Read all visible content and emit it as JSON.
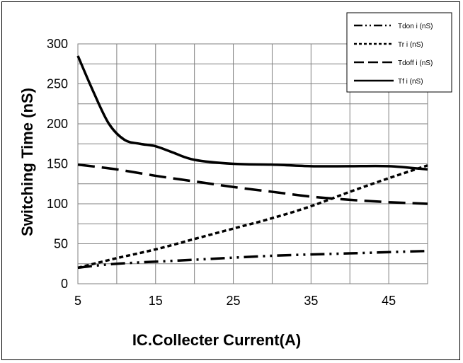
{
  "chart_data": {
    "type": "line",
    "xlabel": "IC.Collecter Current(A)",
    "ylabel": "Switching Time (nS)",
    "xlim": [
      5,
      50
    ],
    "ylim": [
      0,
      300
    ],
    "x_ticks": [
      5,
      15,
      25,
      35,
      45
    ],
    "x_tick_labels": [
      "5",
      "15",
      "25",
      "35",
      "45"
    ],
    "y_ticks": [
      0,
      50,
      100,
      150,
      200,
      250,
      300
    ],
    "y_tick_labels": [
      "0",
      "50",
      "100",
      "150",
      "200",
      "250",
      "300"
    ],
    "grid": true,
    "legend_position": "top-right",
    "series": [
      {
        "name": "Tdon i (nS)",
        "style": "dash-dot-dot",
        "color": "#000000",
        "points": [
          [
            5,
            20
          ],
          [
            10,
            25
          ],
          [
            20,
            30
          ],
          [
            30,
            35
          ],
          [
            40,
            38
          ],
          [
            50,
            41
          ]
        ]
      },
      {
        "name": "Tr i (nS)",
        "style": "short-dash",
        "color": "#000000",
        "points": [
          [
            5,
            20
          ],
          [
            10,
            32
          ],
          [
            15,
            43
          ],
          [
            20,
            56
          ],
          [
            25,
            69
          ],
          [
            30,
            82
          ],
          [
            35,
            97
          ],
          [
            40,
            115
          ],
          [
            45,
            132
          ],
          [
            50,
            148
          ]
        ]
      },
      {
        "name": "Tdoff i (nS)",
        "style": "long-dash",
        "color": "#000000",
        "points": [
          [
            5,
            149
          ],
          [
            10,
            143
          ],
          [
            15,
            135
          ],
          [
            20,
            128
          ],
          [
            25,
            121
          ],
          [
            30,
            115
          ],
          [
            35,
            109
          ],
          [
            40,
            105
          ],
          [
            45,
            102
          ],
          [
            50,
            100
          ]
        ]
      },
      {
        "name": "Tf i (nS)",
        "style": "solid",
        "color": "#000000",
        "points": [
          [
            5,
            285
          ],
          [
            7,
            240
          ],
          [
            9,
            200
          ],
          [
            11,
            180
          ],
          [
            13,
            175
          ],
          [
            15,
            172
          ],
          [
            17,
            165
          ],
          [
            20,
            155
          ],
          [
            25,
            150
          ],
          [
            30,
            149
          ],
          [
            35,
            147
          ],
          [
            40,
            147
          ],
          [
            45,
            147
          ],
          [
            50,
            143
          ]
        ]
      }
    ]
  }
}
